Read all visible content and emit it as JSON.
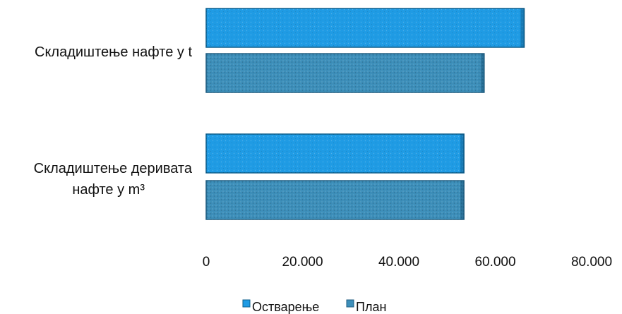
{
  "chart_data": {
    "type": "bar",
    "orientation": "horizontal",
    "title": "",
    "xlabel": "",
    "ylabel": "",
    "xlim": [
      0,
      80000
    ],
    "grid": false,
    "legend_position": "bottom",
    "categories": [
      [
        "Складиштење нафте у t"
      ],
      [
        "Складиштење деривата",
        "нафте у m³"
      ]
    ],
    "x_ticks": [
      {
        "value": 0,
        "label": "0"
      },
      {
        "value": 20000,
        "label": "20.000"
      },
      {
        "value": 40000,
        "label": "40.000"
      },
      {
        "value": 60000,
        "label": "60.000"
      },
      {
        "value": 80000,
        "label": "80.000"
      }
    ],
    "series": [
      {
        "name": "Остварење",
        "color": "#1f9be4",
        "values": [
          66000,
          53500
        ]
      },
      {
        "name": "План",
        "color": "#3d8fba",
        "values": [
          57700,
          53500
        ]
      }
    ]
  }
}
